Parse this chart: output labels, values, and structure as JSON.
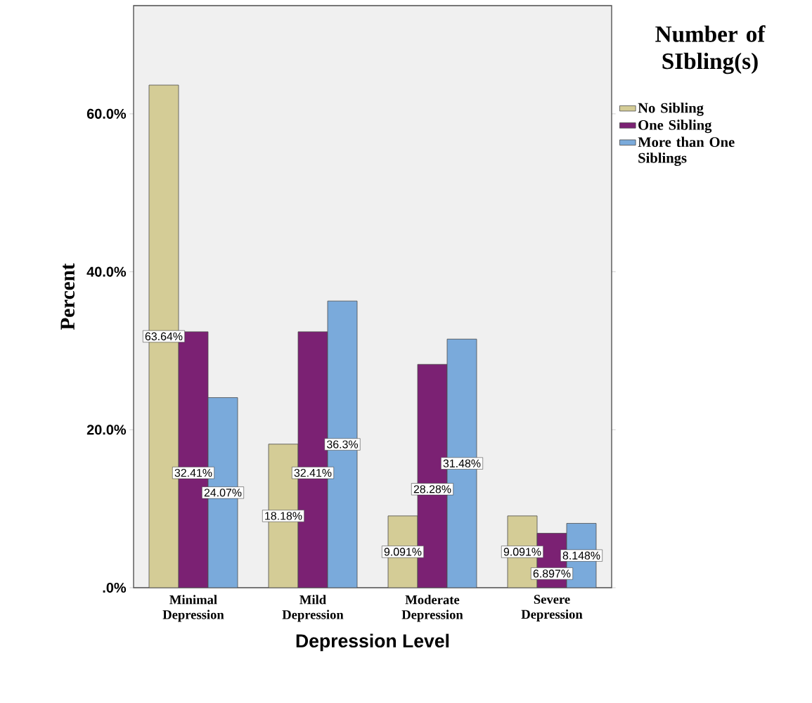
{
  "chart_data": {
    "type": "bar",
    "xlabel": "Depression Level",
    "ylabel": "Percent",
    "legend_title": "Number of SIbling(s)",
    "legend": "top right",
    "categories": [
      "Minimal Depression",
      "Mild Depression",
      "Moderate Depression",
      "Severe Depression"
    ],
    "series": [
      {
        "name": "No Sibling",
        "color": "#d4cc96",
        "values": [
          63.64,
          18.18,
          9.091,
          9.091
        ],
        "value_labels": [
          "63.64%",
          "18.18%",
          "9.091%",
          "9.091%"
        ]
      },
      {
        "name": "One Sibling",
        "color": "#7b2173",
        "values": [
          32.41,
          32.41,
          28.28,
          6.897
        ],
        "value_labels": [
          "32.41%",
          "32.41%",
          "28.28%",
          "6.897%"
        ]
      },
      {
        "name": "More than One Siblings",
        "color": "#7aaadb",
        "values": [
          24.07,
          36.3,
          31.48,
          8.148
        ],
        "value_labels": [
          "24.07%",
          "36.3%",
          "31.48%",
          "8.148%"
        ]
      }
    ],
    "ylim": [
      0,
      73.7
    ],
    "yticks": [
      {
        "value": 0,
        "label": ".0%"
      },
      {
        "value": 20,
        "label": "20.0%"
      },
      {
        "value": 40,
        "label": "40.0%"
      },
      {
        "value": 60,
        "label": "60.0%"
      }
    ],
    "grid": false
  }
}
